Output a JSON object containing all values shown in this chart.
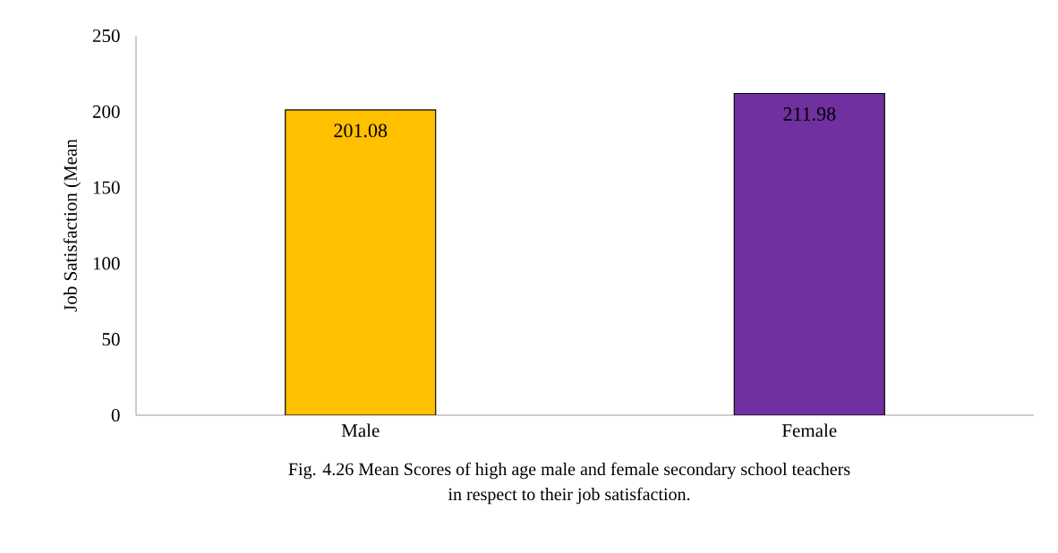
{
  "chart_data": {
    "type": "bar",
    "ylabel": "Job Satisfaction (Mean",
    "categories": [
      "Male",
      "Female"
    ],
    "values": [
      201.08,
      211.98
    ],
    "colors": [
      "#ffc000",
      "#7030a0"
    ],
    "ylim": [
      0,
      250
    ],
    "yticks": [
      0,
      50,
      100,
      150,
      200,
      250
    ],
    "data_labels": true,
    "grid": false,
    "annotations": [
      "Fig. 4.26 Mean Scores of high age male and female secondary school teachers",
      "in respect to their job satisfaction."
    ]
  }
}
